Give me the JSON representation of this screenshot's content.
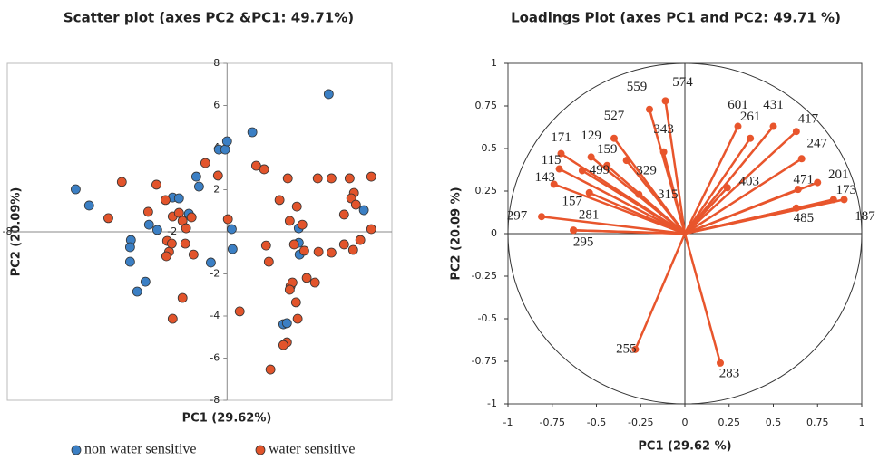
{
  "chart_data": [
    {
      "type": "scatter",
      "title": "Scatter plot (axes PC2 &PC1: 49.71%)",
      "x_label": "PC1 (29.62%)",
      "y_label": "PC2 (20.09%)",
      "xlim": [
        -8,
        6
      ],
      "ylim": [
        -8,
        8
      ],
      "xticks": [
        -8,
        -2
      ],
      "yticks": [
        -8,
        -6,
        -4,
        -2,
        2,
        4,
        6,
        8
      ],
      "legend": "bottom",
      "series": [
        {
          "name": "non water sensitive",
          "color": "#3b7fc4",
          "x": [
            -5.51,
            -5.02,
            -3.5,
            -3.53,
            -2.84,
            -2.54,
            -3.53,
            -2.97,
            -3.27,
            -1.98,
            -1.75,
            -1.12,
            -1.02,
            -1.39,
            -0.59,
            -0.3,
            -0.07,
            0,
            0.92,
            3.7,
            0.17,
            0.2,
            2.61,
            2.61,
            2.64,
            2.05,
            2.18,
            4.98
          ],
          "values": [
            2.02,
            1.25,
            -0.39,
            -0.73,
            0.34,
            0.09,
            -1.42,
            -2.37,
            -2.84,
            1.63,
            1.59,
            2.62,
            2.15,
            0.86,
            -1.46,
            3.91,
            3.91,
            4.3,
            4.73,
            6.54,
            0.13,
            -0.82,
            0.17,
            -0.52,
            -1.08,
            -4.39,
            -4.34,
            1.03
          ]
        },
        {
          "name": "water sensitive",
          "color": "#e2542b",
          "x": [
            -4.32,
            -3.83,
            -2.87,
            -2.57,
            -2.24,
            -2.18,
            -2.11,
            -2.21,
            -2.01,
            -1.98,
            -1.75,
            -1.62,
            -1.49,
            -1.52,
            -1.22,
            -1.29,
            -0.79,
            -0.33,
            0.03,
            1.06,
            1.35,
            -1.62,
            -1.98,
            0.46,
            1.42,
            1.52,
            1.91,
            2.21,
            2.28,
            2.44,
            2.54,
            2.74,
            3.3,
            3.8,
            4.46,
            4.62,
            4.52,
            4.26,
            3.33,
            4.26,
            4.59,
            4.85,
            3.8,
            2.81,
            2.31,
            2.38,
            2.28,
            2.51,
            2.9,
            3.2,
            2.57,
            2.18,
            2.05,
            1.58,
            5.25,
            5.25,
            4.69
          ],
          "values": [
            0.65,
            2.37,
            0.95,
            2.24,
            1.51,
            -0.43,
            -0.95,
            -1.16,
            -0.56,
            0.73,
            0.9,
            0.52,
            0.17,
            -0.56,
            -1.08,
            0.69,
            3.27,
            2.67,
            0.6,
            3.14,
            2.97,
            -3.14,
            -4.13,
            -3.78,
            -0.65,
            -1.42,
            1.51,
            2.54,
            0.52,
            -0.6,
            1.2,
            0.34,
            2.54,
            2.54,
            2.54,
            1.85,
            1.59,
            0.82,
            -0.95,
            -0.6,
            -0.86,
            -0.39,
            -0.99,
            -0.9,
            -2.58,
            -2.41,
            -2.75,
            -3.35,
            -2.19,
            -2.41,
            -4.13,
            -5.25,
            -5.38,
            -6.54,
            2.62,
            0.13,
            1.29
          ]
        }
      ]
    },
    {
      "type": "loadings",
      "title": "Loadings Plot (axes PC1 and PC2: 49.71 %)",
      "x_label": "PC1 (29.62 %)",
      "y_label": "PC2 (20.09 %)",
      "xlim": [
        -1,
        1
      ],
      "ylim": [
        -1,
        1
      ],
      "xticks": [
        -1,
        -0.75,
        -0.5,
        -0.25,
        0,
        0.25,
        0.5,
        0.75,
        1
      ],
      "yticks": [
        -1,
        -0.75,
        -0.5,
        -0.25,
        0,
        0.25,
        0.5,
        0.75,
        1
      ],
      "unit_circle": true,
      "color": "#e8552c",
      "labels": [
        "574",
        "559",
        "343",
        "527",
        "129",
        "171",
        "159",
        "115",
        "499",
        "329",
        "143",
        "157",
        "297",
        "281",
        "295",
        "315",
        "601",
        "261",
        "431",
        "417",
        "247",
        "403",
        "471",
        "201",
        "173",
        "187",
        "485",
        "255",
        "283"
      ],
      "x": [
        -0.11,
        -0.2,
        -0.12,
        -0.4,
        -0.53,
        -0.7,
        -0.44,
        -0.71,
        -0.58,
        -0.33,
        -0.74,
        -0.54,
        -0.81,
        -0.63,
        -0.63,
        -0.26,
        0.3,
        0.37,
        0.5,
        0.63,
        0.66,
        0.24,
        0.64,
        0.75,
        0.84,
        0.9,
        0.63,
        -0.28,
        0.2
      ],
      "values": [
        0.78,
        0.73,
        0.48,
        0.56,
        0.45,
        0.47,
        0.4,
        0.38,
        0.37,
        0.43,
        0.29,
        0.24,
        0.1,
        0.02,
        0.02,
        0.23,
        0.63,
        0.56,
        0.63,
        0.6,
        0.44,
        0.27,
        0.26,
        0.3,
        0.2,
        0.2,
        0.15,
        -0.68,
        -0.76
      ]
    }
  ]
}
